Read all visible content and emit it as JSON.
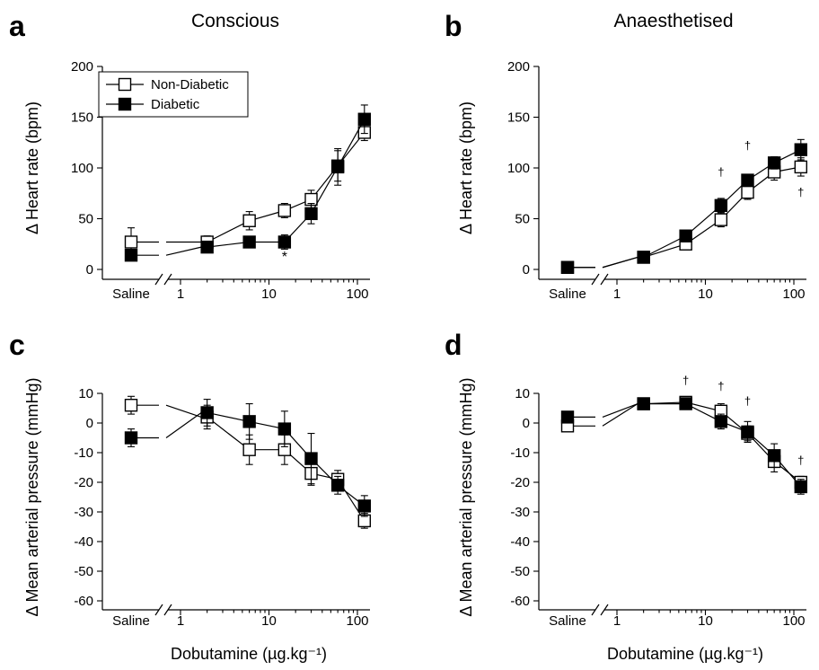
{
  "chart_data": [
    {
      "panel": "a",
      "title": "Conscious",
      "type": "line",
      "ylabel": "Δ Heart rate (bpm)",
      "xlabel": "",
      "xscale": "log",
      "ylim": [
        0,
        200
      ],
      "yticks": [
        0,
        50,
        100,
        150,
        200
      ],
      "xticks": [
        1,
        10,
        100
      ],
      "saline_label": "Saline",
      "legend": {
        "placement": "top-left",
        "entries": [
          "Non-Diabetic",
          "Diabetic"
        ]
      },
      "series": [
        {
          "name": "Non-Diabetic",
          "marker": "open-square",
          "saline": {
            "y": 27,
            "err": 14
          },
          "points": [
            {
              "x": 2,
              "y": 27,
              "err": 6
            },
            {
              "x": 6,
              "y": 48,
              "err": 9
            },
            {
              "x": 15,
              "y": 58,
              "err": 7
            },
            {
              "x": 30,
              "y": 69,
              "err": 9
            },
            {
              "x": 60,
              "y": 102,
              "err": 15
            },
            {
              "x": 120,
              "y": 135,
              "err": 8
            }
          ]
        },
        {
          "name": "Diabetic",
          "marker": "filled-square",
          "saline": {
            "y": 14,
            "err": 0
          },
          "points": [
            {
              "x": 2,
              "y": 22,
              "err": 5
            },
            {
              "x": 6,
              "y": 27,
              "err": 4
            },
            {
              "x": 15,
              "y": 27,
              "err": 7
            },
            {
              "x": 30,
              "y": 55,
              "err": 10
            },
            {
              "x": 60,
              "y": 101,
              "err": 18
            },
            {
              "x": 120,
              "y": 148,
              "err": 14
            }
          ]
        }
      ],
      "annotations": [
        {
          "x": 15,
          "y": 8,
          "text": "*",
          "size": 16
        }
      ]
    },
    {
      "panel": "b",
      "title": "Anaesthetised",
      "type": "line",
      "ylabel": "Δ Heart rate (bpm)",
      "xlabel": "",
      "xscale": "log",
      "ylim": [
        0,
        200
      ],
      "yticks": [
        0,
        50,
        100,
        150,
        200
      ],
      "xticks": [
        1,
        10,
        100
      ],
      "saline_label": "Saline",
      "series": [
        {
          "name": "Non-Diabetic",
          "marker": "open-square",
          "saline": {
            "y": 2,
            "err": 0
          },
          "points": [
            {
              "x": 2,
              "y": 12,
              "err": 0
            },
            {
              "x": 6,
              "y": 25,
              "err": 5
            },
            {
              "x": 15,
              "y": 49,
              "err": 7
            },
            {
              "x": 30,
              "y": 76,
              "err": 7
            },
            {
              "x": 60,
              "y": 96,
              "err": 8
            },
            {
              "x": 120,
              "y": 101,
              "err": 9
            }
          ]
        },
        {
          "name": "Diabetic",
          "marker": "filled-square",
          "saline": {
            "y": 2,
            "err": 0
          },
          "points": [
            {
              "x": 2,
              "y": 12,
              "err": 0
            },
            {
              "x": 6,
              "y": 33,
              "err": 3
            },
            {
              "x": 15,
              "y": 63,
              "err": 7
            },
            {
              "x": 30,
              "y": 88,
              "err": 5
            },
            {
              "x": 60,
              "y": 105,
              "err": 6
            },
            {
              "x": 120,
              "y": 118,
              "err": 10
            }
          ]
        }
      ],
      "annotations": [
        {
          "x": 15,
          "y": 92,
          "text": "†",
          "size": 13
        },
        {
          "x": 30,
          "y": 118,
          "text": "†",
          "size": 13
        },
        {
          "x": 120,
          "y": 72,
          "text": "†",
          "size": 13
        }
      ]
    },
    {
      "panel": "c",
      "type": "line",
      "ylabel": "Δ Mean arterial pressure (mmHg)",
      "xlabel": "Dobutamine (µg.kg⁻¹)",
      "xscale": "log",
      "ylim": [
        -60,
        10
      ],
      "yticks": [
        10,
        0,
        -10,
        -20,
        -30,
        -40,
        -50,
        -60
      ],
      "xticks": [
        1,
        10,
        100
      ],
      "saline_label": "Saline",
      "series": [
        {
          "name": "Non-Diabetic",
          "marker": "open-square",
          "saline": {
            "y": 6,
            "err": 3
          },
          "points": [
            {
              "x": 2,
              "y": 2,
              "err": 4
            },
            {
              "x": 6,
              "y": -9,
              "err": 5
            },
            {
              "x": 15,
              "y": -9,
              "err": 5
            },
            {
              "x": 30,
              "y": -17,
              "err": 4
            },
            {
              "x": 60,
              "y": -19,
              "err": 3
            },
            {
              "x": 120,
              "y": -33,
              "err": 2.5
            }
          ]
        },
        {
          "name": "Diabetic",
          "marker": "filled-square",
          "saline": {
            "y": -5,
            "err": 3
          },
          "points": [
            {
              "x": 2,
              "y": 3.5,
              "err": 4.5
            },
            {
              "x": 6,
              "y": 0.5,
              "err": 6
            },
            {
              "x": 15,
              "y": -2,
              "err": 6
            },
            {
              "x": 30,
              "y": -12,
              "err": 8.5
            },
            {
              "x": 60,
              "y": -21,
              "err": 3
            },
            {
              "x": 120,
              "y": -28,
              "err": 3.5
            }
          ]
        }
      ],
      "annotations": []
    },
    {
      "panel": "d",
      "type": "line",
      "ylabel": "Δ Mean arterial pressure (mmHg)",
      "xlabel": "Dobutamine (µg.kg⁻¹)",
      "xscale": "log",
      "ylim": [
        -60,
        10
      ],
      "yticks": [
        10,
        0,
        -10,
        -20,
        -30,
        -40,
        -50,
        -60
      ],
      "xticks": [
        1,
        10,
        100
      ],
      "saline_label": "Saline",
      "series": [
        {
          "name": "Non-Diabetic",
          "marker": "open-square",
          "saline": {
            "y": -1,
            "err": 0
          },
          "points": [
            {
              "x": 2,
              "y": 6.5,
              "err": 1.5
            },
            {
              "x": 6,
              "y": 7,
              "err": 1.5
            },
            {
              "x": 15,
              "y": 4,
              "err": 2.5
            },
            {
              "x": 30,
              "y": -3.5,
              "err": 2.5
            },
            {
              "x": 60,
              "y": -13,
              "err": 3.5
            },
            {
              "x": 120,
              "y": -20,
              "err": 2
            }
          ]
        },
        {
          "name": "Diabetic",
          "marker": "filled-square",
          "saline": {
            "y": 2,
            "err": 0
          },
          "points": [
            {
              "x": 2,
              "y": 6.5,
              "err": 1.5
            },
            {
              "x": 6,
              "y": 6.5,
              "err": 1.5
            },
            {
              "x": 15,
              "y": 0.5,
              "err": 2.5
            },
            {
              "x": 30,
              "y": -3,
              "err": 3.5
            },
            {
              "x": 60,
              "y": -11,
              "err": 4
            },
            {
              "x": 120,
              "y": -21.5,
              "err": 2.5
            }
          ]
        }
      ],
      "annotations": [
        {
          "x": 6,
          "y": 13,
          "text": "†",
          "size": 13
        },
        {
          "x": 15,
          "y": 11,
          "text": "†",
          "size": 13
        },
        {
          "x": 30,
          "y": 6,
          "text": "†",
          "size": 13
        },
        {
          "x": 120,
          "y": -14,
          "text": "†",
          "size": 13
        }
      ]
    }
  ]
}
